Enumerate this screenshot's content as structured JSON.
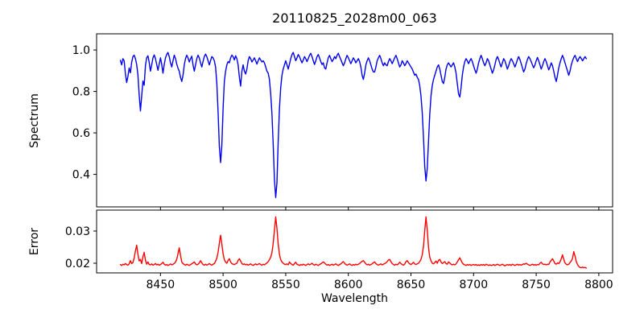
{
  "title": "20110825_2028m00_063",
  "colors": {
    "background": "#ffffff",
    "axes": "#000000",
    "spectrum_line": "#0000ee",
    "error_line": "#ff0000"
  },
  "chart_data": [
    {
      "type": "line",
      "title": "20110825_2028m00_063",
      "ylabel": "Spectrum",
      "xlabel": "",
      "grid": false,
      "legend": "none",
      "xlim": [
        8399,
        8811
      ],
      "ylim": [
        0.243,
        1.078
      ],
      "xticks": [
        8450,
        8500,
        8550,
        8600,
        8650,
        8700,
        8750,
        8800
      ],
      "xtick_labels": [
        "8450",
        "8500",
        "8550",
        "8600",
        "8650",
        "8700",
        "8750",
        "8800"
      ],
      "xtick_labels_visible": false,
      "yticks": [
        0.4,
        0.6,
        0.8,
        1.0
      ],
      "ytick_labels": [
        "0.4",
        "0.6",
        "0.8",
        "1.0"
      ],
      "absorption_features": [
        {
          "wavelength": 8434,
          "depth": 0.71
        },
        {
          "wavelength": 8467,
          "depth": 0.85
        },
        {
          "wavelength": 8498,
          "depth": 0.46
        },
        {
          "wavelength": 8514,
          "depth": 0.83
        },
        {
          "wavelength": 8542,
          "depth": 0.29
        },
        {
          "wavelength": 8612,
          "depth": 0.86
        },
        {
          "wavelength": 8662,
          "depth": 0.37
        },
        {
          "wavelength": 8676,
          "depth": 0.84
        },
        {
          "wavelength": 8689,
          "depth": 0.77
        }
      ],
      "series": [
        {
          "name": "spectrum",
          "color": "#0000ee",
          "x_start": 8418,
          "x_step": 1,
          "y": [
            0.95,
            0.928,
            0.958,
            0.948,
            0.885,
            0.843,
            0.872,
            0.913,
            0.89,
            0.94,
            0.968,
            0.975,
            0.958,
            0.93,
            0.88,
            0.782,
            0.706,
            0.778,
            0.85,
            0.83,
            0.925,
            0.962,
            0.972,
            0.94,
            0.898,
            0.928,
            0.962,
            0.976,
            0.958,
            0.93,
            0.902,
            0.932,
            0.962,
            0.93,
            0.888,
            0.93,
            0.962,
            0.978,
            0.988,
            0.968,
            0.938,
            0.918,
            0.948,
            0.975,
            0.958,
            0.932,
            0.912,
            0.898,
            0.868,
            0.848,
            0.878,
            0.928,
            0.958,
            0.975,
            0.962,
            0.942,
            0.958,
            0.97,
            0.928,
            0.898,
            0.928,
            0.958,
            0.975,
            0.962,
            0.938,
            0.918,
            0.945,
            0.968,
            0.98,
            0.968,
            0.948,
            0.928,
            0.948,
            0.968,
            0.962,
            0.948,
            0.918,
            0.838,
            0.7,
            0.535,
            0.457,
            0.54,
            0.718,
            0.848,
            0.898,
            0.928,
            0.944,
            0.938,
            0.962,
            0.975,
            0.968,
            0.952,
            0.972,
            0.958,
            0.928,
            0.868,
            0.826,
            0.898,
            0.928,
            0.898,
            0.884,
            0.908,
            0.948,
            0.968,
            0.958,
            0.942,
            0.952,
            0.962,
            0.948,
            0.932,
            0.948,
            0.962,
            0.952,
            0.942,
            0.948,
            0.938,
            0.918,
            0.898,
            0.888,
            0.858,
            0.788,
            0.692,
            0.545,
            0.375,
            0.288,
            0.36,
            0.558,
            0.718,
            0.818,
            0.878,
            0.908,
            0.928,
            0.948,
            0.928,
            0.908,
            0.932,
            0.958,
            0.978,
            0.988,
            0.968,
            0.948,
            0.962,
            0.978,
            0.968,
            0.952,
            0.938,
            0.952,
            0.968,
            0.958,
            0.944,
            0.958,
            0.974,
            0.984,
            0.968,
            0.948,
            0.93,
            0.948,
            0.968,
            0.978,
            0.962,
            0.944,
            0.93,
            0.938,
            0.914,
            0.908,
            0.938,
            0.962,
            0.974,
            0.958,
            0.944,
            0.954,
            0.968,
            0.958,
            0.974,
            0.984,
            0.968,
            0.954,
            0.938,
            0.924,
            0.938,
            0.958,
            0.974,
            0.962,
            0.948,
            0.934,
            0.948,
            0.962,
            0.952,
            0.938,
            0.948,
            0.958,
            0.944,
            0.918,
            0.878,
            0.858,
            0.888,
            0.928,
            0.948,
            0.962,
            0.948,
            0.928,
            0.908,
            0.894,
            0.894,
            0.918,
            0.948,
            0.962,
            0.974,
            0.958,
            0.938,
            0.924,
            0.938,
            0.928,
            0.924,
            0.944,
            0.958,
            0.948,
            0.934,
            0.948,
            0.962,
            0.974,
            0.958,
            0.938,
            0.918,
            0.928,
            0.948,
            0.938,
            0.924,
            0.934,
            0.948,
            0.938,
            0.928,
            0.918,
            0.908,
            0.893,
            0.878,
            0.884,
            0.868,
            0.858,
            0.828,
            0.778,
            0.698,
            0.578,
            0.438,
            0.368,
            0.428,
            0.558,
            0.688,
            0.778,
            0.828,
            0.858,
            0.878,
            0.898,
            0.918,
            0.928,
            0.908,
            0.878,
            0.848,
            0.838,
            0.868,
            0.908,
            0.928,
            0.938,
            0.928,
            0.918,
            0.928,
            0.938,
            0.918,
            0.888,
            0.838,
            0.788,
            0.773,
            0.818,
            0.878,
            0.918,
            0.944,
            0.958,
            0.948,
            0.934,
            0.948,
            0.958,
            0.944,
            0.924,
            0.904,
            0.888,
            0.908,
            0.938,
            0.958,
            0.974,
            0.958,
            0.938,
            0.924,
            0.938,
            0.958,
            0.948,
            0.928,
            0.908,
            0.888,
            0.904,
            0.928,
            0.954,
            0.968,
            0.954,
            0.934,
            0.918,
            0.938,
            0.958,
            0.948,
            0.928,
            0.908,
            0.924,
            0.944,
            0.958,
            0.948,
            0.934,
            0.918,
            0.934,
            0.954,
            0.968,
            0.954,
            0.934,
            0.914,
            0.894,
            0.908,
            0.934,
            0.954,
            0.968,
            0.958,
            0.944,
            0.928,
            0.914,
            0.928,
            0.948,
            0.964,
            0.948,
            0.928,
            0.908,
            0.924,
            0.944,
            0.958,
            0.944,
            0.924,
            0.904,
            0.918,
            0.938,
            0.924,
            0.898,
            0.868,
            0.848,
            0.878,
            0.914,
            0.938,
            0.958,
            0.974,
            0.958,
            0.938,
            0.918,
            0.898,
            0.878,
            0.898,
            0.928,
            0.948,
            0.964,
            0.974,
            0.958,
            0.944,
            0.958,
            0.968,
            0.958,
            0.948,
            0.958,
            0.968,
            0.958
          ]
        }
      ]
    },
    {
      "type": "line",
      "title": "",
      "ylabel": "Error",
      "xlabel": "Wavelength",
      "grid": false,
      "legend": "none",
      "xlim": [
        8399,
        8811
      ],
      "ylim": [
        0.017,
        0.0365
      ],
      "xticks": [
        8450,
        8500,
        8550,
        8600,
        8650,
        8700,
        8750,
        8800
      ],
      "xtick_labels": [
        "8450",
        "8500",
        "8550",
        "8600",
        "8650",
        "8700",
        "8750",
        "8800"
      ],
      "xtick_labels_visible": true,
      "yticks": [
        0.02,
        0.03
      ],
      "ytick_labels": [
        "0.02",
        "0.03"
      ],
      "error_peaks": [
        {
          "wavelength": 8431,
          "value": 0.0256
        },
        {
          "wavelength": 8465,
          "value": 0.0248
        },
        {
          "wavelength": 8498,
          "value": 0.0287
        },
        {
          "wavelength": 8542,
          "value": 0.0344
        },
        {
          "wavelength": 8662,
          "value": 0.0344
        },
        {
          "wavelength": 8780,
          "value": 0.0236
        }
      ],
      "series": [
        {
          "name": "error",
          "color": "#ff0000",
          "x_start": 8418,
          "x_step": 1,
          "y": [
            0.0196,
            0.0193,
            0.0197,
            0.0195,
            0.0199,
            0.0196,
            0.0194,
            0.0198,
            0.0208,
            0.0199,
            0.0202,
            0.0216,
            0.0238,
            0.0256,
            0.0228,
            0.0207,
            0.0212,
            0.0199,
            0.022,
            0.0234,
            0.0209,
            0.0197,
            0.0204,
            0.0196,
            0.0195,
            0.0198,
            0.0194,
            0.0196,
            0.0199,
            0.0195,
            0.0197,
            0.0194,
            0.0196,
            0.0199,
            0.0203,
            0.0197,
            0.0194,
            0.0196,
            0.0193,
            0.0195,
            0.0198,
            0.0195,
            0.0197,
            0.0199,
            0.0204,
            0.0212,
            0.023,
            0.0248,
            0.0224,
            0.0204,
            0.0199,
            0.0196,
            0.0194,
            0.0197,
            0.0195,
            0.0193,
            0.0196,
            0.0198,
            0.0201,
            0.0204,
            0.0198,
            0.0195,
            0.0197,
            0.0201,
            0.0208,
            0.0201,
            0.0196,
            0.0194,
            0.0197,
            0.0194,
            0.0196,
            0.0199,
            0.0196,
            0.0194,
            0.0197,
            0.0199,
            0.0206,
            0.0216,
            0.0234,
            0.0262,
            0.0287,
            0.026,
            0.0229,
            0.0211,
            0.0204,
            0.02,
            0.0209,
            0.0214,
            0.0204,
            0.0199,
            0.0197,
            0.0196,
            0.0198,
            0.02,
            0.0209,
            0.0214,
            0.0207,
            0.0199,
            0.0196,
            0.0198,
            0.0195,
            0.0197,
            0.0194,
            0.0196,
            0.0198,
            0.0195,
            0.0193,
            0.0196,
            0.0198,
            0.0195,
            0.0197,
            0.0199,
            0.0196,
            0.0194,
            0.0197,
            0.0195,
            0.0198,
            0.0201,
            0.0205,
            0.0211,
            0.0219,
            0.0233,
            0.0262,
            0.0302,
            0.0344,
            0.0308,
            0.026,
            0.0227,
            0.0211,
            0.0204,
            0.02,
            0.0197,
            0.0196,
            0.0198,
            0.0195,
            0.0204,
            0.0199,
            0.0196,
            0.0194,
            0.0199,
            0.0203,
            0.0197,
            0.0195,
            0.0193,
            0.0196,
            0.0194,
            0.0197,
            0.0195,
            0.0193,
            0.0196,
            0.0198,
            0.0195,
            0.0197,
            0.02,
            0.0196,
            0.0194,
            0.0197,
            0.0195,
            0.0193,
            0.0196,
            0.0198,
            0.0201,
            0.0204,
            0.0201,
            0.0197,
            0.0194,
            0.0196,
            0.0193,
            0.0195,
            0.0197,
            0.0194,
            0.0196,
            0.0198,
            0.0195,
            0.0193,
            0.0196,
            0.0198,
            0.0202,
            0.0205,
            0.02,
            0.0196,
            0.0194,
            0.0196,
            0.0198,
            0.0195,
            0.0193,
            0.0196,
            0.0194,
            0.0197,
            0.0195,
            0.0197,
            0.0199,
            0.0203,
            0.0206,
            0.0208,
            0.0203,
            0.0198,
            0.0195,
            0.0197,
            0.0194,
            0.0196,
            0.0198,
            0.0202,
            0.0204,
            0.0199,
            0.0196,
            0.0194,
            0.0196,
            0.0198,
            0.0195,
            0.0197,
            0.0199,
            0.0201,
            0.0205,
            0.021,
            0.0212,
            0.0205,
            0.0199,
            0.0196,
            0.0194,
            0.0197,
            0.0195,
            0.0198,
            0.0203,
            0.0199,
            0.0196,
            0.0194,
            0.0197,
            0.0205,
            0.0208,
            0.0202,
            0.0198,
            0.0196,
            0.0199,
            0.0203,
            0.0198,
            0.0196,
            0.0198,
            0.02,
            0.0205,
            0.0212,
            0.0226,
            0.0253,
            0.0301,
            0.0344,
            0.0304,
            0.025,
            0.0219,
            0.0208,
            0.02,
            0.0198,
            0.0202,
            0.0207,
            0.02,
            0.0209,
            0.0212,
            0.0204,
            0.0199,
            0.0202,
            0.0205,
            0.0199,
            0.0197,
            0.0204,
            0.0201,
            0.0197,
            0.0195,
            0.0197,
            0.0195,
            0.0198,
            0.0204,
            0.0211,
            0.0217,
            0.0209,
            0.0201,
            0.0197,
            0.0195,
            0.0193,
            0.0196,
            0.0194,
            0.0196,
            0.0193,
            0.0195,
            0.0196,
            0.0194,
            0.0196,
            0.0193,
            0.0195,
            0.0193,
            0.0196,
            0.0194,
            0.0196,
            0.0193,
            0.0197,
            0.0195,
            0.0193,
            0.0195,
            0.0193,
            0.0194,
            0.0196,
            0.0193,
            0.0195,
            0.0197,
            0.0195,
            0.0193,
            0.0195,
            0.0197,
            0.0194,
            0.0192,
            0.0194,
            0.0196,
            0.0194,
            0.0196,
            0.0193,
            0.0197,
            0.0195,
            0.0193,
            0.0195,
            0.0197,
            0.0194,
            0.0196,
            0.0194,
            0.0196,
            0.0198,
            0.0197,
            0.02,
            0.0197,
            0.0195,
            0.0193,
            0.0195,
            0.0197,
            0.0194,
            0.0196,
            0.0194,
            0.0196,
            0.0195,
            0.02,
            0.0203,
            0.0198,
            0.0196,
            0.0197,
            0.0195,
            0.0197,
            0.0196,
            0.0204,
            0.0209,
            0.0214,
            0.0207,
            0.0199,
            0.0197,
            0.0201,
            0.0199,
            0.0204,
            0.0214,
            0.0226,
            0.0212,
            0.0201,
            0.0197,
            0.0195,
            0.0197,
            0.0202,
            0.0207,
            0.0215,
            0.0236,
            0.0222,
            0.0205,
            0.0196,
            0.019,
            0.0187,
            0.0186,
            0.0188,
            0.0186,
            0.0187,
            0.0185
          ]
        }
      ]
    }
  ]
}
